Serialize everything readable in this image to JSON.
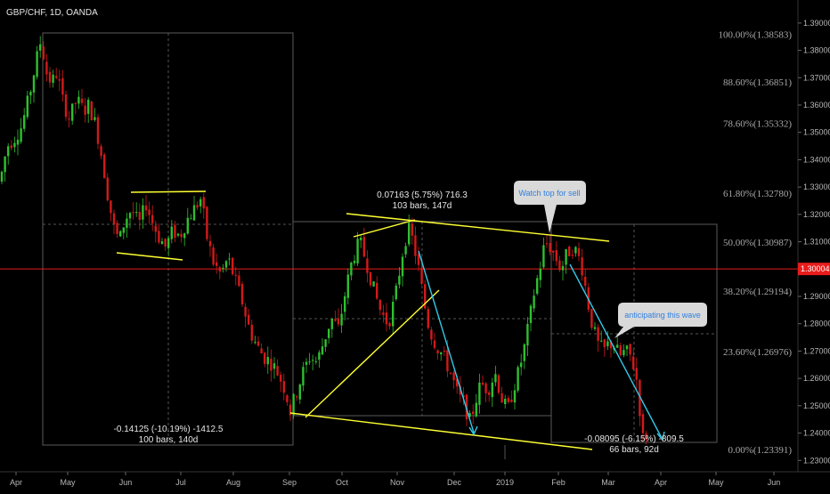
{
  "header": {
    "title": "GBP/CHF, 1D, OANDA"
  },
  "chart_data": {
    "type": "candlestick",
    "symbol": "GBP/CHF",
    "interval": "1D",
    "source": "OANDA",
    "y_axis": {
      "ticks": [
        "1.39000",
        "1.38000",
        "1.37000",
        "1.36000",
        "1.35000",
        "1.34000",
        "1.33000",
        "1.32000",
        "1.31000",
        "1.29000",
        "1.28000",
        "1.27000",
        "1.26000",
        "1.25000",
        "1.24000",
        "1.23000"
      ],
      "range": [
        1.2265,
        1.3955
      ]
    },
    "x_axis": {
      "ticks": [
        "Apr",
        "May",
        "Jun",
        "Jul",
        "Aug",
        "Sep",
        "Oct",
        "Nov",
        "Dec",
        "2019",
        "Feb",
        "Mar",
        "Apr",
        "May",
        "Jun"
      ]
    },
    "current_price": {
      "label": "1.30004",
      "value": 1.30004,
      "color": "#e81c1c"
    },
    "fibonacci_levels": [
      {
        "label": "100.00%(1.38583)",
        "value": 1.38583
      },
      {
        "label": "88.60%(1.36851)",
        "value": 1.36851
      },
      {
        "label": "78.60%(1.35332)",
        "value": 1.35332
      },
      {
        "label": "61.80%(1.32780)",
        "value": 1.3278
      },
      {
        "label": "50.00%(1.30987)",
        "value": 1.30987
      },
      {
        "label": "38.20%(1.29194)",
        "value": 1.29194
      },
      {
        "label": "23.60%(1.26976)",
        "value": 1.26976
      },
      {
        "label": "0.00%(1.23391)",
        "value": 1.23391
      }
    ],
    "measurements": [
      {
        "line1": "0.07163 (5.75%) 716.3",
        "line2": "103 bars, 147d"
      },
      {
        "line1": "-0.14125 (-10.19%) -1412.5",
        "line2": "100 bars, 140d"
      },
      {
        "line1": "-0.08095 (-6.15%) -809.5",
        "line2": "66 bars, 92d"
      }
    ],
    "callouts": [
      {
        "text": "Watch top for sell"
      },
      {
        "text": "anticipating this wave"
      }
    ],
    "colors": {
      "up": "#2fbf2f",
      "down": "#d11a1a",
      "trendline": "#ffff33",
      "projection": "#33c8e6",
      "callout_text": "#2f7fe0",
      "background": "#000000"
    }
  }
}
